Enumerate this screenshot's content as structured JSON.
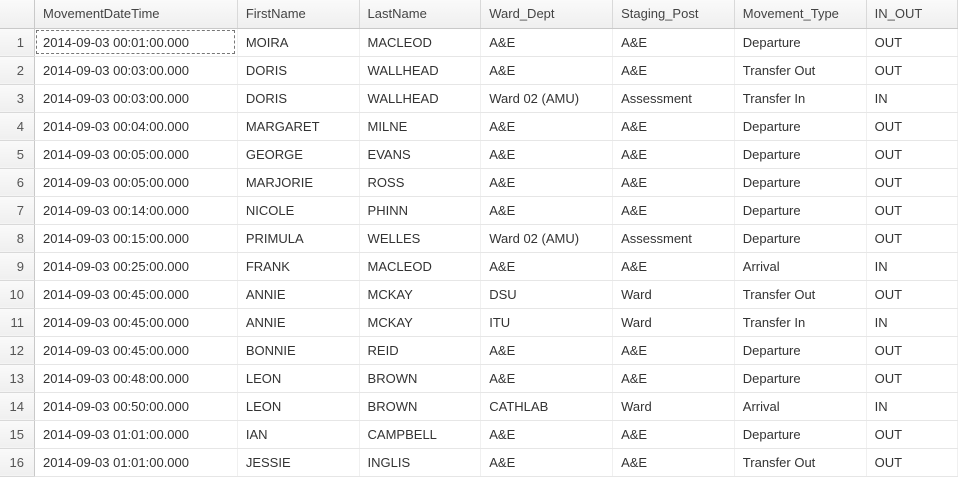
{
  "table": {
    "columns": [
      {
        "key": "movementDateTime",
        "label": "MovementDateTime",
        "cls": "c-dt"
      },
      {
        "key": "firstName",
        "label": "FirstName",
        "cls": "c-fn"
      },
      {
        "key": "lastName",
        "label": "LastName",
        "cls": "c-ln"
      },
      {
        "key": "wardDept",
        "label": "Ward_Dept",
        "cls": "c-wd"
      },
      {
        "key": "stagingPost",
        "label": "Staging_Post",
        "cls": "c-sp"
      },
      {
        "key": "movementType",
        "label": "Movement_Type",
        "cls": "c-mt"
      },
      {
        "key": "inOut",
        "label": "IN_OUT",
        "cls": "c-io"
      }
    ],
    "rows": [
      {
        "n": "1",
        "movementDateTime": "2014-09-03 00:01:00.000",
        "firstName": "MOIRA",
        "lastName": "MACLEOD",
        "wardDept": "A&E",
        "stagingPost": "A&E",
        "movementType": "Departure",
        "inOut": "OUT",
        "selected": true
      },
      {
        "n": "2",
        "movementDateTime": "2014-09-03 00:03:00.000",
        "firstName": "DORIS",
        "lastName": "WALLHEAD",
        "wardDept": "A&E",
        "stagingPost": "A&E",
        "movementType": "Transfer Out",
        "inOut": "OUT"
      },
      {
        "n": "3",
        "movementDateTime": "2014-09-03 00:03:00.000",
        "firstName": "DORIS",
        "lastName": "WALLHEAD",
        "wardDept": "Ward 02 (AMU)",
        "stagingPost": "Assessment",
        "movementType": "Transfer In",
        "inOut": "IN"
      },
      {
        "n": "4",
        "movementDateTime": "2014-09-03 00:04:00.000",
        "firstName": "MARGARET",
        "lastName": "MILNE",
        "wardDept": "A&E",
        "stagingPost": "A&E",
        "movementType": "Departure",
        "inOut": "OUT"
      },
      {
        "n": "5",
        "movementDateTime": "2014-09-03 00:05:00.000",
        "firstName": "GEORGE",
        "lastName": "EVANS",
        "wardDept": "A&E",
        "stagingPost": "A&E",
        "movementType": "Departure",
        "inOut": "OUT"
      },
      {
        "n": "6",
        "movementDateTime": "2014-09-03 00:05:00.000",
        "firstName": "MARJORIE",
        "lastName": "ROSS",
        "wardDept": "A&E",
        "stagingPost": "A&E",
        "movementType": "Departure",
        "inOut": "OUT"
      },
      {
        "n": "7",
        "movementDateTime": "2014-09-03 00:14:00.000",
        "firstName": "NICOLE",
        "lastName": "PHINN",
        "wardDept": "A&E",
        "stagingPost": "A&E",
        "movementType": "Departure",
        "inOut": "OUT"
      },
      {
        "n": "8",
        "movementDateTime": "2014-09-03 00:15:00.000",
        "firstName": "PRIMULA",
        "lastName": "WELLES",
        "wardDept": "Ward 02 (AMU)",
        "stagingPost": "Assessment",
        "movementType": "Departure",
        "inOut": "OUT"
      },
      {
        "n": "9",
        "movementDateTime": "2014-09-03 00:25:00.000",
        "firstName": "FRANK",
        "lastName": "MACLEOD",
        "wardDept": "A&E",
        "stagingPost": "A&E",
        "movementType": "Arrival",
        "inOut": "IN"
      },
      {
        "n": "10",
        "movementDateTime": "2014-09-03 00:45:00.000",
        "firstName": "ANNIE",
        "lastName": "MCKAY",
        "wardDept": "DSU",
        "stagingPost": "Ward",
        "movementType": "Transfer Out",
        "inOut": "OUT"
      },
      {
        "n": "11",
        "movementDateTime": "2014-09-03 00:45:00.000",
        "firstName": "ANNIE",
        "lastName": "MCKAY",
        "wardDept": "ITU",
        "stagingPost": "Ward",
        "movementType": "Transfer In",
        "inOut": "IN"
      },
      {
        "n": "12",
        "movementDateTime": "2014-09-03 00:45:00.000",
        "firstName": "BONNIE",
        "lastName": "REID",
        "wardDept": "A&E",
        "stagingPost": "A&E",
        "movementType": "Departure",
        "inOut": "OUT"
      },
      {
        "n": "13",
        "movementDateTime": "2014-09-03 00:48:00.000",
        "firstName": "LEON",
        "lastName": "BROWN",
        "wardDept": "A&E",
        "stagingPost": "A&E",
        "movementType": "Departure",
        "inOut": "OUT"
      },
      {
        "n": "14",
        "movementDateTime": "2014-09-03 00:50:00.000",
        "firstName": "LEON",
        "lastName": "BROWN",
        "wardDept": "CATHLAB",
        "stagingPost": "Ward",
        "movementType": "Arrival",
        "inOut": "IN"
      },
      {
        "n": "15",
        "movementDateTime": "2014-09-03 01:01:00.000",
        "firstName": "IAN",
        "lastName": "CAMPBELL",
        "wardDept": "A&E",
        "stagingPost": "A&E",
        "movementType": "Departure",
        "inOut": "OUT"
      },
      {
        "n": "16",
        "movementDateTime": "2014-09-03 01:01:00.000",
        "firstName": "JESSIE",
        "lastName": "INGLIS",
        "wardDept": "A&E",
        "stagingPost": "A&E",
        "movementType": "Transfer Out",
        "inOut": "OUT"
      }
    ]
  },
  "style": {
    "header_bg_top": "#fafafa",
    "header_bg_bottom": "#efefef",
    "border_color": "#d9d9d9",
    "row_border": "#e6e6e6",
    "text_color": "#333333",
    "font_size_pt": 10
  }
}
